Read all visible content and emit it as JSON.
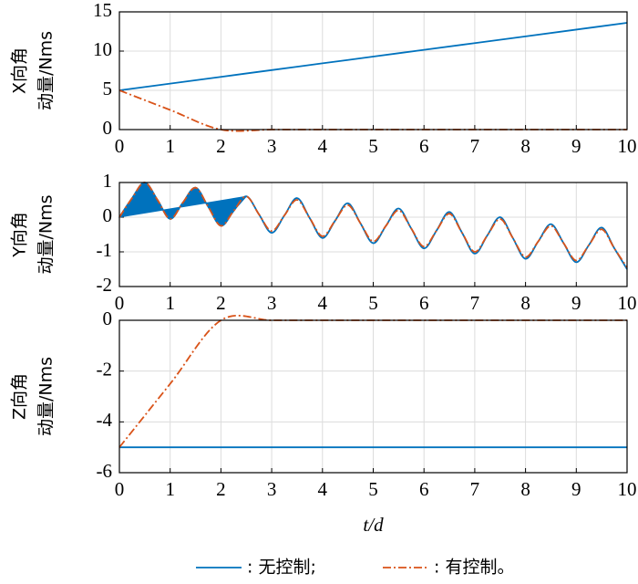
{
  "chart_data": [
    {
      "type": "line",
      "ylabel": [
        "X向角",
        "动量/Nms"
      ],
      "x": [
        0,
        1,
        2,
        3,
        4,
        5,
        6,
        7,
        8,
        9,
        10
      ],
      "xlim": [
        0,
        10
      ],
      "xticks": [
        0,
        1,
        2,
        3,
        4,
        5,
        6,
        7,
        8,
        9,
        10
      ],
      "ylim": [
        0,
        15
      ],
      "yticks": [
        0,
        5,
        10,
        15
      ],
      "grid": true,
      "series": [
        {
          "color": "#0072bd",
          "dash": "solid",
          "values": [
            5,
            5.86,
            6.72,
            7.58,
            8.44,
            9.3,
            10.16,
            11.02,
            11.88,
            12.74,
            13.6
          ]
        },
        {
          "color": "#d95319",
          "dash": "dashdot",
          "values": [
            5,
            2.5,
            0,
            0,
            0,
            0,
            0,
            0,
            0,
            0,
            0
          ]
        }
      ]
    },
    {
      "type": "line",
      "ylabel": [
        "Y向角",
        "动量/Nms"
      ],
      "x": [
        0,
        0.25,
        0.5,
        0.75,
        1,
        1.25,
        1.5,
        1.75,
        2,
        2.25,
        2.5,
        2.75,
        3,
        3.25,
        3.5,
        3.75,
        4,
        4.25,
        4.5,
        4.75,
        5,
        5.25,
        5.5,
        5.75,
        6,
        6.25,
        6.5,
        6.75,
        7,
        7.25,
        7.5,
        7.75,
        8,
        8.25,
        8.5,
        8.75,
        9,
        9.25,
        9.5,
        9.75,
        10
      ],
      "xlim": [
        0,
        10
      ],
      "xticks": [
        0,
        1,
        2,
        3,
        4,
        5,
        6,
        7,
        8,
        9,
        10
      ],
      "ylim": [
        -2,
        1
      ],
      "yticks": [
        -2,
        -1,
        0,
        1
      ],
      "grid": true,
      "chord_fill_end": 2.5,
      "series": [
        {
          "color": "#0072bd",
          "dash": "solid",
          "values": [
            0,
            0.55,
            1.0,
            0.5,
            -0.05,
            0.42,
            0.85,
            0.3,
            -0.25,
            0.18,
            0.6,
            0.08,
            -0.45,
            0.05,
            0.55,
            -0.03,
            -0.6,
            -0.1,
            0.4,
            -0.18,
            -0.75,
            -0.25,
            0.25,
            -0.33,
            -0.9,
            -0.38,
            0.15,
            -0.45,
            -1.05,
            -0.52,
            0.0,
            -0.6,
            -1.2,
            -0.7,
            -0.2,
            -0.75,
            -1.3,
            -0.8,
            -0.3,
            -0.9,
            -1.5
          ]
        },
        {
          "color": "#d95319",
          "dash": "dashdot",
          "values": [
            0,
            0.55,
            1.0,
            0.5,
            -0.05,
            0.42,
            0.85,
            0.3,
            -0.25,
            0.18,
            0.6,
            0.08,
            -0.4,
            0.05,
            0.5,
            -0.03,
            -0.55,
            -0.1,
            0.35,
            -0.18,
            -0.7,
            -0.25,
            0.2,
            -0.33,
            -0.85,
            -0.38,
            0.1,
            -0.45,
            -1.0,
            -0.52,
            -0.05,
            -0.6,
            -1.15,
            -0.7,
            -0.25,
            -0.75,
            -1.25,
            -0.8,
            -0.35,
            -0.9,
            -1.45
          ]
        }
      ]
    },
    {
      "type": "line",
      "ylabel": [
        "Z向角",
        "动量/Nms"
      ],
      "xlabel": "t/d",
      "x": [
        0,
        1,
        2,
        3,
        4,
        5,
        6,
        7,
        8,
        9,
        10
      ],
      "xlim": [
        0,
        10
      ],
      "xticks": [
        0,
        1,
        2,
        3,
        4,
        5,
        6,
        7,
        8,
        9,
        10
      ],
      "ylim": [
        -6,
        0
      ],
      "yticks": [
        -6,
        -4,
        -2,
        0
      ],
      "grid": true,
      "series": [
        {
          "name": ": 无控制;",
          "color": "#0072bd",
          "dash": "solid",
          "values": [
            -5,
            -5,
            -5,
            -5,
            -5,
            -5,
            -5,
            -5,
            -5,
            -5,
            -5
          ]
        },
        {
          "name": ": 有控制。",
          "color": "#d95319",
          "dash": "dashdot",
          "values": [
            -5,
            -2.5,
            0,
            0,
            0,
            0,
            0,
            0,
            0,
            0,
            0
          ]
        }
      ]
    }
  ]
}
